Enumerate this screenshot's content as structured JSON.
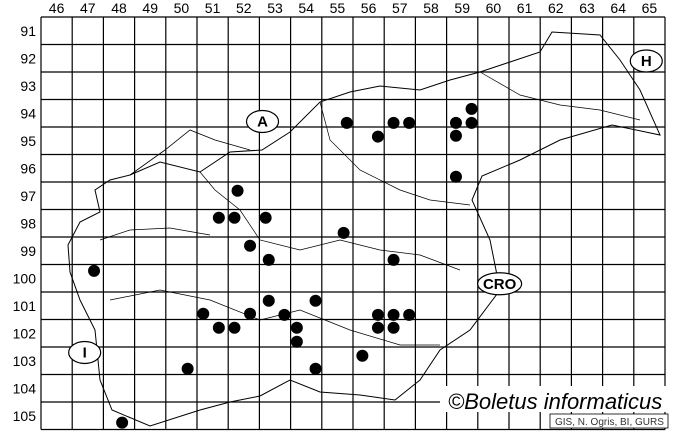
{
  "map": {
    "columns": [
      "46",
      "47",
      "48",
      "49",
      "50",
      "51",
      "52",
      "53",
      "54",
      "55",
      "56",
      "57",
      "58",
      "59",
      "60",
      "61",
      "62",
      "63",
      "64",
      "65"
    ],
    "rows": [
      "91",
      "92",
      "93",
      "94",
      "95",
      "96",
      "97",
      "98",
      "99",
      "100",
      "101",
      "102",
      "103",
      "104",
      "105"
    ],
    "country_markers": [
      {
        "label": "A",
        "col": 52.6,
        "row": 94.3
      },
      {
        "label": "H",
        "col": 64.9,
        "row": 92.1
      },
      {
        "label": "CRO",
        "col": 60.2,
        "row": 100.2
      },
      {
        "label": "I",
        "col": 46.9,
        "row": 102.7
      }
    ],
    "occurrences": [
      {
        "col": 55.3,
        "row": 94.35
      },
      {
        "col": 56.3,
        "row": 94.85
      },
      {
        "col": 56.8,
        "row": 94.35
      },
      {
        "col": 57.3,
        "row": 94.35
      },
      {
        "col": 58.8,
        "row": 94.35
      },
      {
        "col": 59.3,
        "row": 93.84
      },
      {
        "col": 59.3,
        "row": 94.35
      },
      {
        "col": 58.8,
        "row": 94.82
      },
      {
        "col": 58.8,
        "row": 96.31
      },
      {
        "col": 51.8,
        "row": 96.82
      },
      {
        "col": 51.2,
        "row": 97.8
      },
      {
        "col": 51.7,
        "row": 97.8
      },
      {
        "col": 52.7,
        "row": 97.8
      },
      {
        "col": 55.2,
        "row": 98.35
      },
      {
        "col": 52.2,
        "row": 98.82
      },
      {
        "col": 52.8,
        "row": 99.33
      },
      {
        "col": 56.8,
        "row": 99.33
      },
      {
        "col": 47.2,
        "row": 99.73
      },
      {
        "col": 52.8,
        "row": 100.82
      },
      {
        "col": 54.3,
        "row": 100.82
      },
      {
        "col": 50.7,
        "row": 101.29
      },
      {
        "col": 52.2,
        "row": 101.29
      },
      {
        "col": 53.3,
        "row": 101.33
      },
      {
        "col": 56.3,
        "row": 101.33
      },
      {
        "col": 56.8,
        "row": 101.33
      },
      {
        "col": 57.3,
        "row": 101.33
      },
      {
        "col": 51.2,
        "row": 101.8
      },
      {
        "col": 51.7,
        "row": 101.8
      },
      {
        "col": 56.3,
        "row": 101.8
      },
      {
        "col": 56.8,
        "row": 101.8
      },
      {
        "col": 53.7,
        "row": 101.8
      },
      {
        "col": 53.7,
        "row": 102.31
      },
      {
        "col": 55.8,
        "row": 102.82
      },
      {
        "col": 50.2,
        "row": 103.29
      },
      {
        "col": 54.3,
        "row": 103.29
      },
      {
        "col": 48.1,
        "row": 105.25
      }
    ],
    "credit": "©Boletus informaticus",
    "source": "GIS, N. Ogris, BI, GURS",
    "dot_color": "#000000"
  }
}
